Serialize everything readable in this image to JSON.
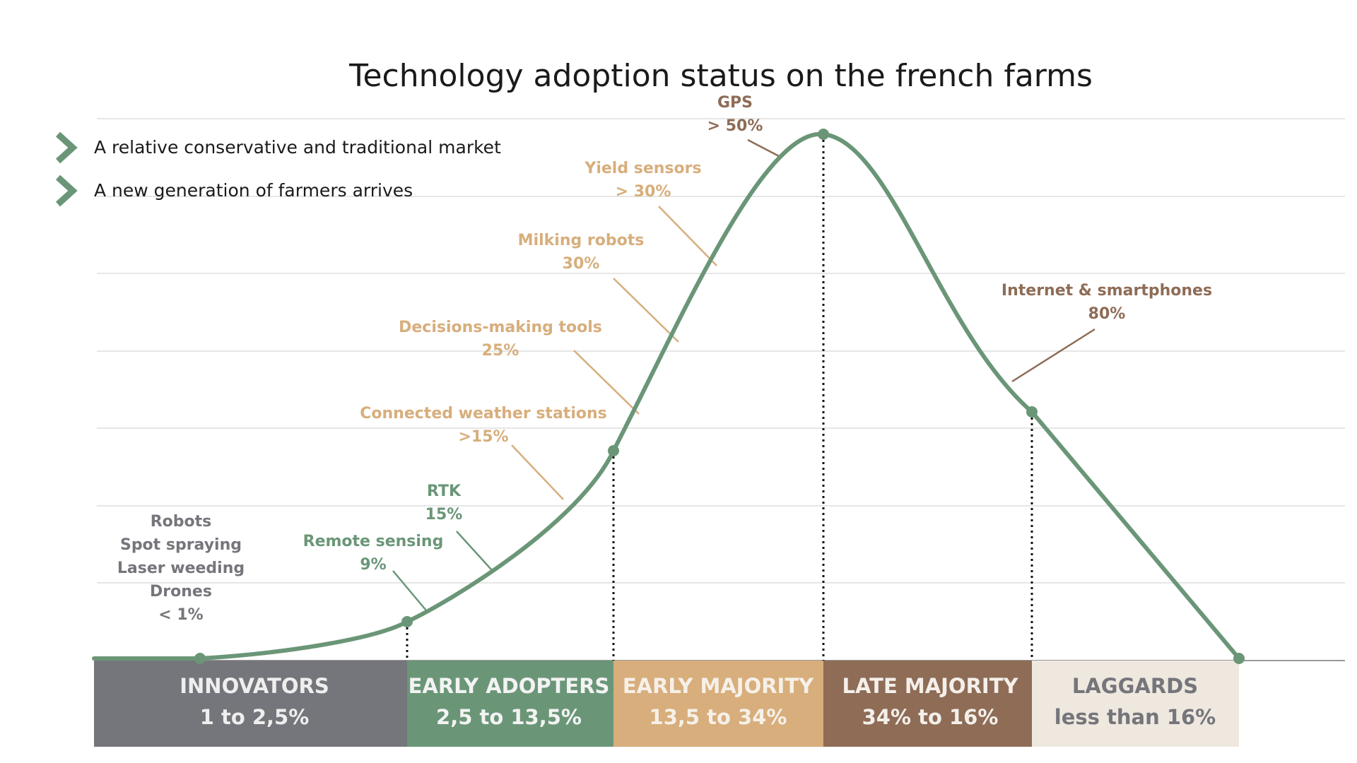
{
  "chart_data": {
    "type": "line",
    "title": "Technology adoption status on the french farms",
    "bullets": [
      "A relative conservative and traditional market",
      "A new generation of farmers arrives"
    ],
    "colors": {
      "curve": "#6a9677",
      "grid": "#dedede",
      "innovators": "#75767b",
      "early_adopters": "#6a9677",
      "early_majority": "#d7ae7c",
      "late_majority": "#8e6c56",
      "laggards": "#efe8df",
      "ann_green": "#6a9677",
      "ann_tan": "#d7ae7c",
      "ann_brown": "#8e6c56",
      "ann_gray": "#75767b"
    },
    "segments": [
      {
        "name": "INNOVATORS",
        "range": "1 to 2,5%"
      },
      {
        "name": "EARLY ADOPTERS",
        "range": "2,5 to 13,5%"
      },
      {
        "name": "EARLY MAJORITY",
        "range": "13,5 to 34%"
      },
      {
        "name": "LATE MAJORITY",
        "range": "34% to 16%"
      },
      {
        "name": "LAGGARDS",
        "range": "less than 16%"
      }
    ],
    "annotations": [
      {
        "lines": [
          "Robots",
          "Spot spraying",
          "Laser weeding",
          "Drones",
          "< 1%"
        ]
      },
      {
        "lines": [
          "Remote sensing",
          "9%"
        ]
      },
      {
        "lines": [
          "RTK",
          "15%"
        ]
      },
      {
        "lines": [
          "Connected weather stations",
          ">15%"
        ]
      },
      {
        "lines": [
          "Decisions-making tools",
          "25%"
        ]
      },
      {
        "lines": [
          "Milking robots",
          "30%"
        ]
      },
      {
        "lines": [
          "Yield sensors",
          "> 30%"
        ]
      },
      {
        "lines": [
          "GPS",
          "> 50%"
        ]
      },
      {
        "lines": [
          "Internet & smartphones",
          "80%"
        ]
      }
    ]
  }
}
